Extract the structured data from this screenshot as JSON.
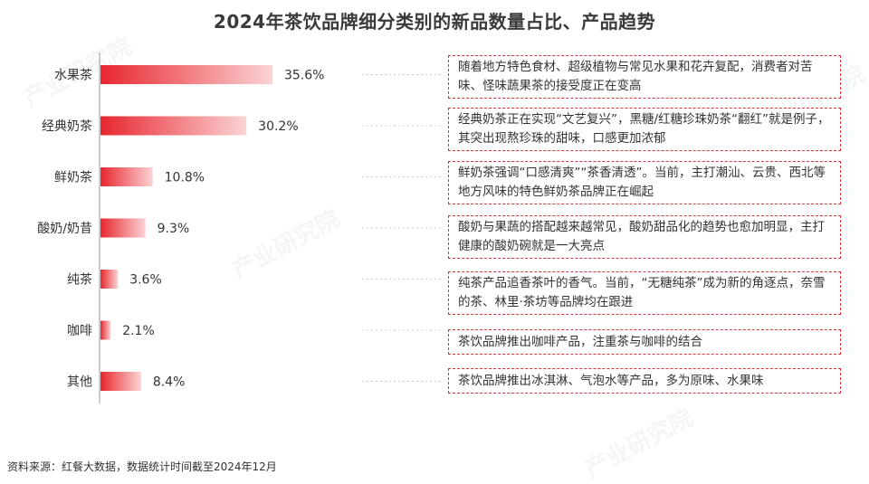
{
  "title": "2024年茶饮品牌细分类别的新品数量占比、产品趋势",
  "footer": "资料来源：红餐大数据，数据统计时间截至2024年12月",
  "watermark_text": "产业研究院",
  "colors": {
    "bar_start": "#e8262f",
    "bar_end": "#fbd3d4",
    "note_border": "#e0333f"
  },
  "chart_data": {
    "type": "bar",
    "orientation": "horizontal",
    "categories": [
      "水果茶",
      "经典奶茶",
      "鲜奶茶",
      "酸奶/奶昔",
      "纯茶",
      "咖啡",
      "其他"
    ],
    "values": [
      35.6,
      30.2,
      10.8,
      9.3,
      3.6,
      2.1,
      8.4
    ],
    "value_labels": [
      "35.6%",
      "30.2%",
      "10.8%",
      "9.3%",
      "3.6%",
      "2.1%",
      "8.4%"
    ],
    "unit": "%",
    "title": "2024年茶饮品牌细分类别的新品数量占比、产品趋势",
    "xlim": [
      0,
      100
    ]
  },
  "notes": [
    "随着地方特色食材、超级植物与常见水果和花卉复配，消费者对苦味、怪味蔬果茶的接受度正在变高",
    "经典奶茶正在实现“文艺复兴”，黑糖/红糖珍珠奶茶“翻红”就是例子，其突出现熬珍珠的甜味，口感更加浓郁",
    "鲜奶茶强调“口感清爽”“茶香清透”。当前，主打潮汕、云贵、西北等地方风味的特色鲜奶茶品牌正在崛起",
    "酸奶与果蔬的搭配越来越常见，酸奶甜品化的趋势也愈加明显，主打健康的酸奶碗就是一大亮点",
    "纯茶产品追香茶叶的香气。当前，“无糖纯茶”成为新的角逐点，奈雪的茶、林里·茶坊等品牌均在跟进",
    "茶饮品牌推出咖啡产品，注重茶与咖啡的结合",
    "茶饮品牌推出冰淇淋、气泡水等产品，多为原味、水果味"
  ]
}
